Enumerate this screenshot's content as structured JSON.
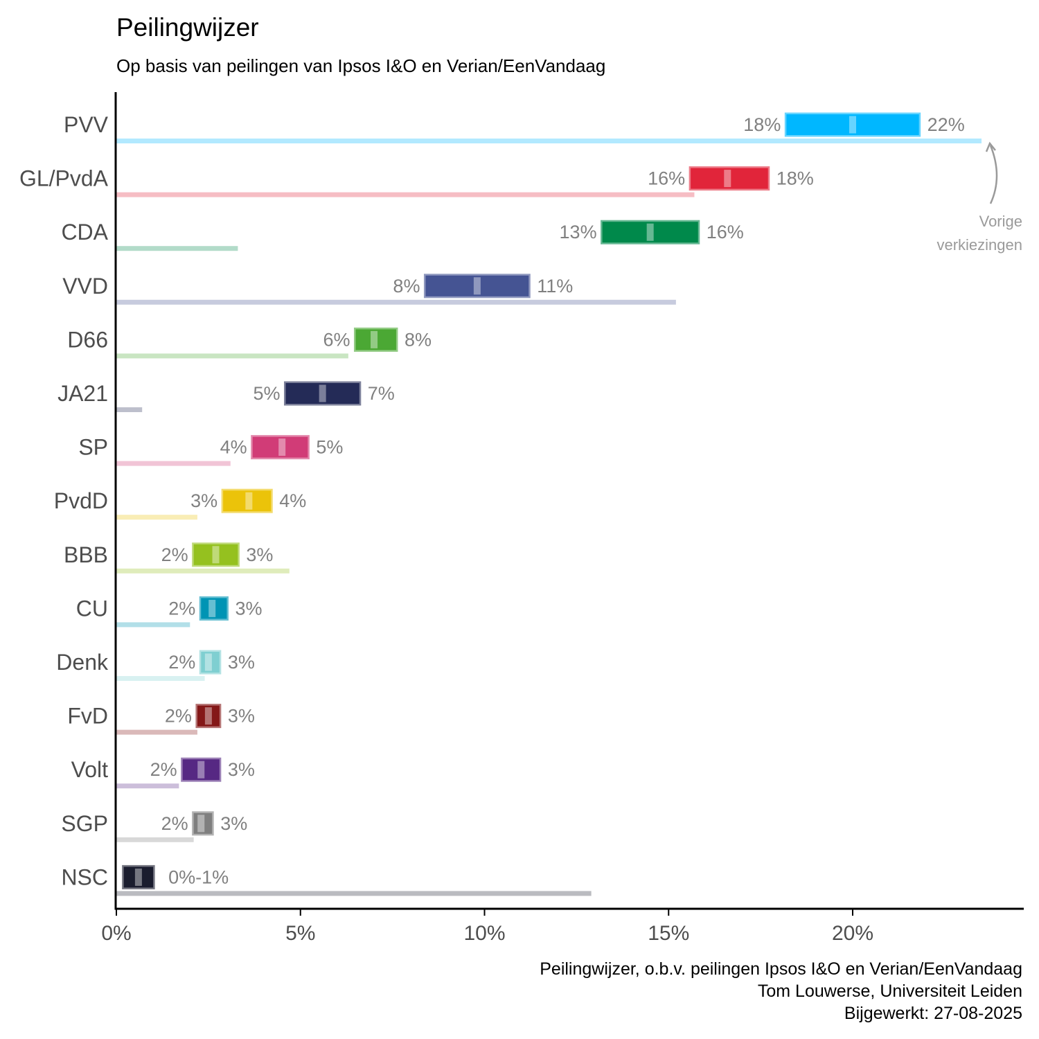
{
  "chart_data": {
    "type": "bar",
    "title": "Peilingwijzer",
    "subtitle": "Op basis van peilingen van Ipsos I&O en Verian/EenVandaag",
    "xlabel": "",
    "ylabel": "",
    "xlim": [
      0,
      24.7
    ],
    "x_ticks": [
      0,
      5,
      10,
      15,
      20
    ],
    "x_tick_labels": [
      "0%",
      "5%",
      "10%",
      "15%",
      "20%"
    ],
    "grid": false,
    "annotation": [
      "Vorige",
      "verkiezingen"
    ],
    "caption": [
      "Peilingwijzer, o.b.v. peilingen Ipsos I&O en Verian/EenVandaag",
      "Tom Louwerse, Universiteit Leiden",
      "Bijgewerkt: 27-08-2025"
    ],
    "parties": [
      {
        "name": "PVV",
        "low": 18.2,
        "high": 21.8,
        "estimate": 20.0,
        "previous": 23.5,
        "low_label": "18%",
        "high_label": "22%",
        "color": "#00b7ff"
      },
      {
        "name": "GL/PvdA",
        "low": 15.6,
        "high": 17.7,
        "estimate": 16.6,
        "previous": 15.7,
        "low_label": "16%",
        "high_label": "18%",
        "color": "#e1253a"
      },
      {
        "name": "CDA",
        "low": 13.2,
        "high": 15.8,
        "estimate": 14.5,
        "previous": 3.3,
        "low_label": "13%",
        "high_label": "16%",
        "color": "#00894b"
      },
      {
        "name": "VVD",
        "low": 8.4,
        "high": 11.2,
        "estimate": 9.8,
        "previous": 15.2,
        "low_label": "8%",
        "high_label": "11%",
        "color": "#455493"
      },
      {
        "name": "D66",
        "low": 6.5,
        "high": 7.6,
        "estimate": 7.0,
        "previous": 6.3,
        "low_label": "6%",
        "high_label": "8%",
        "color": "#4ba834"
      },
      {
        "name": "JA21",
        "low": 4.6,
        "high": 6.6,
        "estimate": 5.6,
        "previous": 0.7,
        "low_label": "5%",
        "high_label": "7%",
        "color": "#242b57"
      },
      {
        "name": "SP",
        "low": 3.7,
        "high": 5.2,
        "estimate": 4.5,
        "previous": 3.1,
        "low_label": "4%",
        "high_label": "5%",
        "color": "#d13c77"
      },
      {
        "name": "PvdD",
        "low": 2.9,
        "high": 4.2,
        "estimate": 3.6,
        "previous": 2.2,
        "low_label": "3%",
        "high_label": "4%",
        "color": "#ebc30a"
      },
      {
        "name": "BBB",
        "low": 2.1,
        "high": 3.3,
        "estimate": 2.7,
        "previous": 4.7,
        "low_label": "2%",
        "high_label": "3%",
        "color": "#95c11f"
      },
      {
        "name": "CU",
        "low": 2.3,
        "high": 3.0,
        "estimate": 2.6,
        "previous": 2.0,
        "low_label": "2%",
        "high_label": "3%",
        "color": "#0094b4"
      },
      {
        "name": "Denk",
        "low": 2.3,
        "high": 2.8,
        "estimate": 2.5,
        "previous": 2.4,
        "low_label": "2%",
        "high_label": "3%",
        "color": "#7fcfd1"
      },
      {
        "name": "FvD",
        "low": 2.2,
        "high": 2.8,
        "estimate": 2.5,
        "previous": 2.2,
        "low_label": "2%",
        "high_label": "3%",
        "color": "#841818"
      },
      {
        "name": "Volt",
        "low": 1.8,
        "high": 2.8,
        "estimate": 2.3,
        "previous": 1.7,
        "low_label": "2%",
        "high_label": "3%",
        "color": "#562883"
      },
      {
        "name": "SGP",
        "low": 2.1,
        "high": 2.6,
        "estimate": 2.3,
        "previous": 2.1,
        "low_label": "2%",
        "high_label": "3%",
        "color": "#7f7f7f"
      },
      {
        "name": "NSC",
        "low": 0.2,
        "high": 1.0,
        "estimate": 0.6,
        "previous": 12.9,
        "low_label": "",
        "high_label": "0%-1%",
        "color": "#1a1d2e"
      }
    ]
  }
}
